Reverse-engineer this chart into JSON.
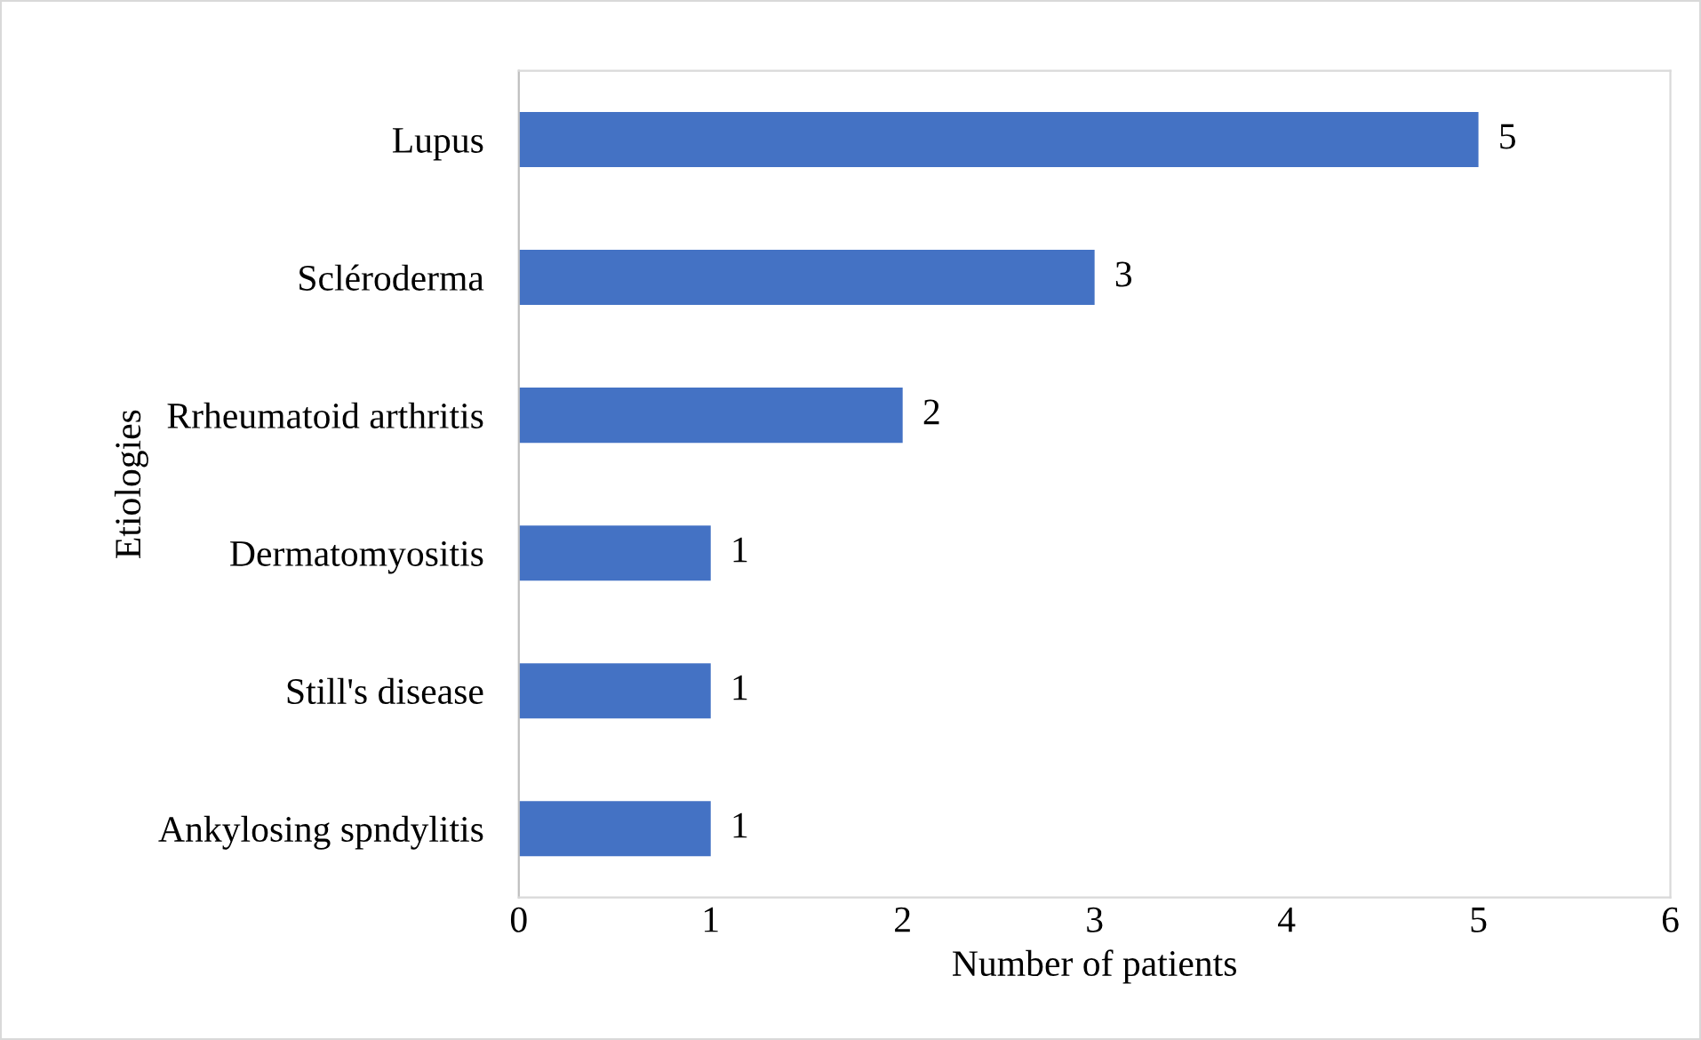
{
  "chart_data": {
    "type": "bar",
    "orientation": "horizontal",
    "xlabel": "Number of patients",
    "ylabel": "Etiologies",
    "categories": [
      "Lupus",
      "Scléroderma",
      "Rrheumatoid arthritis",
      "Dermatomyositis",
      "Still's disease",
      "Ankylosing spndylitis"
    ],
    "values": [
      5,
      3,
      2,
      1,
      1,
      1
    ],
    "color": "#4472c4",
    "xlim": [
      0,
      6
    ],
    "xticks": [
      0,
      1,
      2,
      3,
      4,
      5,
      6
    ],
    "grid": false,
    "data_labels": true
  }
}
